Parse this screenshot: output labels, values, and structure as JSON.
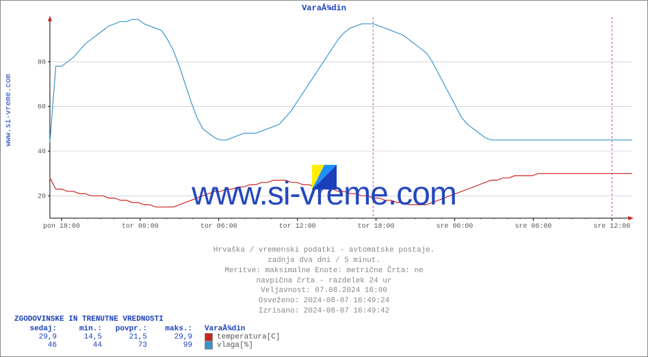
{
  "chart": {
    "title": "VaraÅ¾din",
    "watermark_text": "www.si-vreme.com",
    "side_label": "www.si-vreme.com",
    "background_color": "#ffffff",
    "border_color": "#888888",
    "grid_color": "#bbbbbb",
    "axis_tick_color": "#555555",
    "axis_label_color": "#555555",
    "divider_color": "#cc33cc",
    "arrow_color": "#cc2222",
    "title_color": "#1a3fbb",
    "y": {
      "lim": [
        10,
        100
      ],
      "ticks": [
        20,
        40,
        60,
        80
      ]
    },
    "x": {
      "labels": [
        "pon 18:00",
        "tor 00:00",
        "tor 06:00",
        "tor 12:00",
        "tor 18:00",
        "sre 00:00",
        "sre 06:00",
        "sre 12:00"
      ],
      "ratios": [
        0.02,
        0.155,
        0.29,
        0.425,
        0.56,
        0.695,
        0.83,
        0.965
      ],
      "dividers": [
        0.555,
        0.965
      ]
    },
    "series": {
      "temperature": {
        "label": "temperatura[C]",
        "color": "#cc2222",
        "points_y": [
          28,
          23,
          23,
          22,
          22,
          21,
          21,
          20,
          20,
          20,
          19,
          19,
          18,
          18,
          17,
          17,
          16,
          16,
          15,
          15,
          15,
          15,
          16,
          17,
          18,
          19,
          20,
          21,
          22,
          22,
          23,
          23,
          24,
          24,
          25,
          25,
          26,
          26,
          27,
          27,
          27,
          26,
          26,
          25,
          25,
          24,
          24,
          23,
          23,
          22,
          22,
          21,
          21,
          20,
          20,
          19,
          19,
          18,
          18,
          17,
          17,
          16,
          16,
          16,
          16,
          17,
          18,
          19,
          20,
          21,
          22,
          23,
          24,
          25,
          26,
          27,
          27,
          28,
          28,
          29,
          29,
          29,
          29,
          30,
          30,
          30,
          30,
          30,
          30,
          30,
          30,
          30,
          30,
          30,
          30,
          30,
          30,
          30,
          30,
          30
        ]
      },
      "humidity": {
        "label": "vlaga[%]",
        "color": "#3a94cc",
        "points_y": [
          44,
          78,
          78,
          80,
          82,
          85,
          88,
          90,
          92,
          94,
          96,
          97,
          98,
          98,
          99,
          99,
          97,
          96,
          95,
          94,
          90,
          85,
          78,
          70,
          62,
          55,
          50,
          48,
          46,
          45,
          45,
          46,
          47,
          48,
          48,
          48,
          49,
          50,
          51,
          52,
          55,
          58,
          62,
          66,
          70,
          74,
          78,
          82,
          86,
          90,
          93,
          95,
          96,
          97,
          97,
          97,
          96,
          95,
          94,
          93,
          92,
          90,
          88,
          86,
          84,
          80,
          75,
          70,
          65,
          60,
          55,
          52,
          50,
          48,
          46,
          45,
          45,
          45,
          45,
          45,
          45,
          45,
          45,
          45,
          45,
          45,
          45,
          45,
          45,
          45,
          45,
          45,
          45,
          45,
          45,
          45,
          45,
          45,
          45,
          45
        ]
      }
    }
  },
  "footer": {
    "line1": "Hrvaška / vremenski podatki - avtomatske postaje.",
    "line2": "zadnja dva dni / 5 minut.",
    "line3": "Meritve: maksimalne  Enote: metrične  Črta: ne",
    "line4": "navpična črta - razdelek 24 ur",
    "line5": "Veljavnost: 07.08.2024 16:00",
    "line6": "Osveženo: 2024-08-07 16:49:24",
    "line7": "Izrisano: 2024-08-07 16:49:42"
  },
  "legend": {
    "header": "ZGODOVINSKE IN TRENUTNE VREDNOSTI",
    "cols": {
      "now": "sedaj:",
      "min": "min.:",
      "avg": "povpr.:",
      "max": "maks.:"
    },
    "station": "VaraÅ¾din",
    "rows": [
      {
        "now": "29,9",
        "min": "14,5",
        "avg": "21,5",
        "max": "29,9",
        "swatch": "#cc2222",
        "name": "temperatura[C]"
      },
      {
        "now": "46",
        "min": "44",
        "avg": "73",
        "max": "99",
        "swatch": "#3a94cc",
        "name": "vlaga[%]"
      }
    ]
  },
  "logo": {
    "c1": "#ffee00",
    "c2": "#1e90ff",
    "c3": "#1a3fbb"
  }
}
